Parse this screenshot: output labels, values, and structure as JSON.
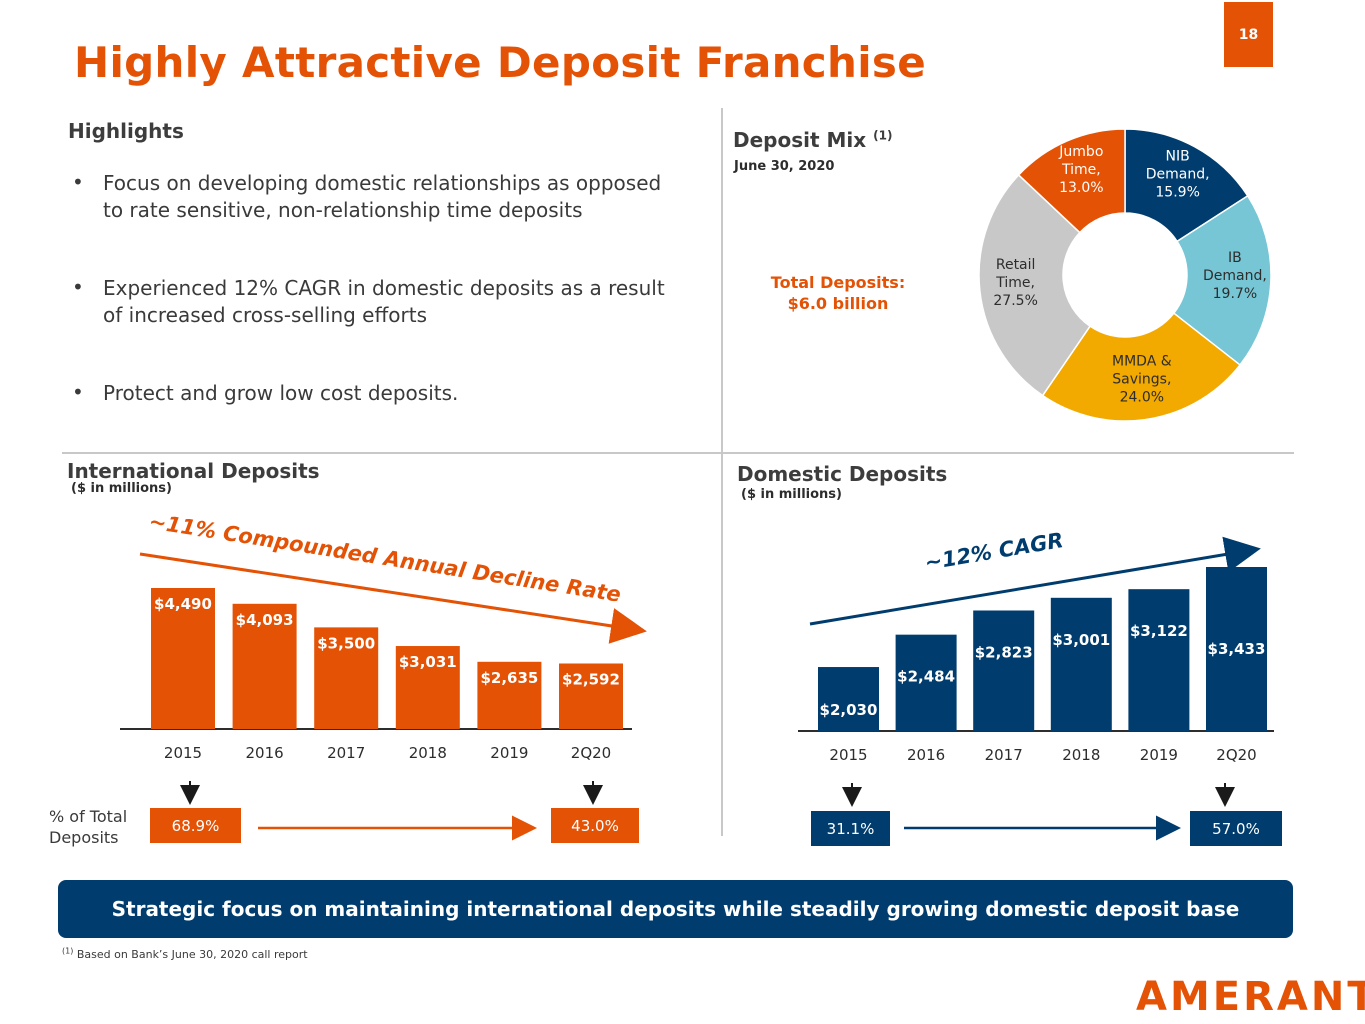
{
  "page_number": "18",
  "title": "Highly Attractive Deposit Franchise",
  "highlights": {
    "heading": "Highlights",
    "bullets": [
      {
        "line1": "Focus on developing domestic relationships as opposed",
        "line2": "to rate sensitive, non-relationship time deposits"
      },
      {
        "line1": "Experienced 12% CAGR in domestic deposits as a result",
        "line2": "of increased cross-selling efforts"
      },
      {
        "line1": "Protect and grow low cost deposits.",
        "line2": ""
      }
    ]
  },
  "deposit_mix": {
    "heading": "Deposit Mix",
    "footnote_marker": "(1)",
    "date": "June 30, 2020",
    "total_label": "Total Deposits:",
    "total_value": "$6.0 billion"
  },
  "international": {
    "heading": "International Deposits",
    "subheading": "($ in millions)",
    "trend_label": "~11% Compounded Annual Decline Rate",
    "pct_label_line1": "% of Total",
    "pct_label_line2": "Deposits",
    "pct_start": "68.9%",
    "pct_end": "43.0%"
  },
  "domestic": {
    "heading": "Domestic Deposits",
    "subheading": "($ in millions)",
    "trend_label": "~12% CAGR",
    "pct_start": "31.1%",
    "pct_end": "57.0%"
  },
  "banner": "Strategic focus on maintaining international deposits while steadily growing domestic deposit base",
  "footnote": {
    "marker": "(1)",
    "text": "Based on Bank’s June 30, 2020 call report"
  },
  "logo": "AMERANT",
  "colors": {
    "orange": "#e35205",
    "navy": "#003d6e",
    "light_blue": "#76c6d6",
    "gold": "#f2a900",
    "gray": "#c8c8c8"
  },
  "chart_data": [
    {
      "type": "pie",
      "name": "deposit-mix",
      "style": "donut",
      "slices": [
        {
          "label_lines": [
            "NIB",
            "Demand,",
            "15.9%"
          ],
          "value": 15.9,
          "color": "#003d6e",
          "text_color": "#ffffff"
        },
        {
          "label_lines": [
            "IB",
            "Demand,",
            "19.7%"
          ],
          "value": 19.7,
          "color": "#76c6d6",
          "text_color": "#2d2d2d"
        },
        {
          "label_lines": [
            "MMDA  &",
            "Savings,",
            "24.0%"
          ],
          "value": 24.0,
          "color": "#f2a900",
          "text_color": "#2d2d2d"
        },
        {
          "label_lines": [
            "Retail",
            "Time,",
            "27.5%"
          ],
          "value": 27.5,
          "color": "#c8c8c8",
          "text_color": "#2d2d2d"
        },
        {
          "label_lines": [
            "Jumbo",
            "Time,",
            "13.0%"
          ],
          "value": 13.0,
          "color": "#e35205",
          "text_color": "#ffffff"
        }
      ]
    },
    {
      "type": "bar",
      "name": "international-deposits",
      "categories": [
        "2015",
        "2016",
        "2017",
        "2018",
        "2019",
        "2Q20"
      ],
      "values": [
        4490,
        4093,
        3500,
        3031,
        2635,
        2592
      ],
      "labels": [
        "$4,490",
        "$4,093",
        "$3,500",
        "$3,031",
        "$2,635",
        "$2,592"
      ],
      "color": "#e35205",
      "ylim": [
        1750,
        4490
      ]
    },
    {
      "type": "bar",
      "name": "domestic-deposits",
      "categories": [
        "2015",
        "2016",
        "2017",
        "2018",
        "2019",
        "2Q20"
      ],
      "values": [
        2030,
        2484,
        2823,
        3001,
        3122,
        3433
      ],
      "labels": [
        "$2,030",
        "$2,484",
        "$2,823",
        "$3,001",
        "$3,122",
        "$3,433"
      ],
      "color": "#003d6e",
      "ylim": [
        1750,
        3433
      ]
    }
  ]
}
